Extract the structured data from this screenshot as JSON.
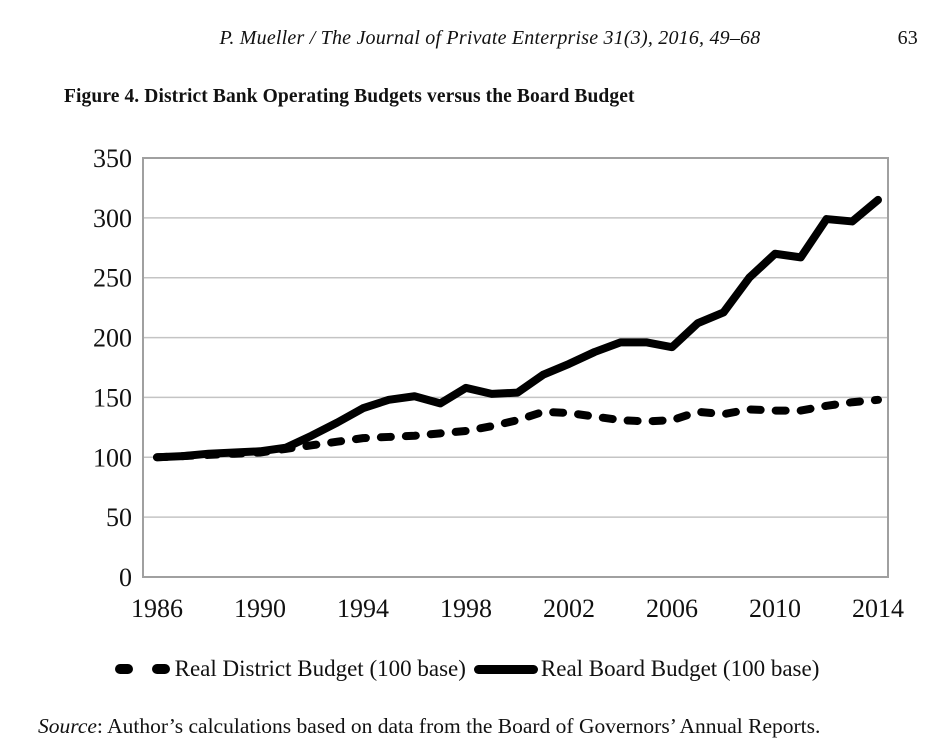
{
  "page": {
    "header": {
      "citation": "P. Mueller / The Journal of Private Enterprise 31(3), 2016, 49–68",
      "page_number": "63"
    },
    "figure_caption": "Figure 4. District Bank Operating Budgets versus the Board Budget",
    "source_note": {
      "label": "Source",
      "text": ": Author’s calculations based on data from the Board of Governors’ Annual Reports."
    }
  },
  "chart_data": {
    "type": "line",
    "title": "Figure 4. District Bank Operating Budgets versus the Board Budget",
    "x": [
      1986,
      1987,
      1988,
      1989,
      1990,
      1991,
      1992,
      1993,
      1994,
      1995,
      1996,
      1997,
      1998,
      1999,
      2000,
      2001,
      2002,
      2003,
      2004,
      2005,
      2006,
      2007,
      2008,
      2009,
      2010,
      2011,
      2012,
      2013,
      2014
    ],
    "xticks": [
      1986,
      1990,
      1994,
      1998,
      2002,
      2006,
      2010,
      2014
    ],
    "yticks": [
      0,
      50,
      100,
      150,
      200,
      250,
      300,
      350
    ],
    "ylim": [
      0,
      350
    ],
    "grid": "horizontal",
    "legend_position": "bottom",
    "series": [
      {
        "name": "Real District Budget (100 base)",
        "style": "dashed",
        "color": "#000000",
        "values": [
          100,
          101,
          102,
          103,
          104,
          107,
          110,
          113,
          116,
          117,
          118,
          120,
          122,
          126,
          131,
          138,
          137,
          134,
          131,
          130,
          131,
          138,
          136,
          140,
          139,
          139,
          143,
          146,
          148
        ]
      },
      {
        "name": "Real Board Budget (100 base)",
        "style": "solid",
        "color": "#000000",
        "values": [
          100,
          101,
          103,
          104,
          105,
          108,
          118,
          129,
          141,
          148,
          151,
          145,
          158,
          153,
          154,
          169,
          178,
          188,
          196,
          196,
          192,
          212,
          221,
          250,
          270,
          267,
          299,
          297,
          315
        ]
      }
    ],
    "colors": {
      "line": "#000000",
      "gridline": "#c4c4c4",
      "plot_border": "#a0a0a0"
    }
  }
}
